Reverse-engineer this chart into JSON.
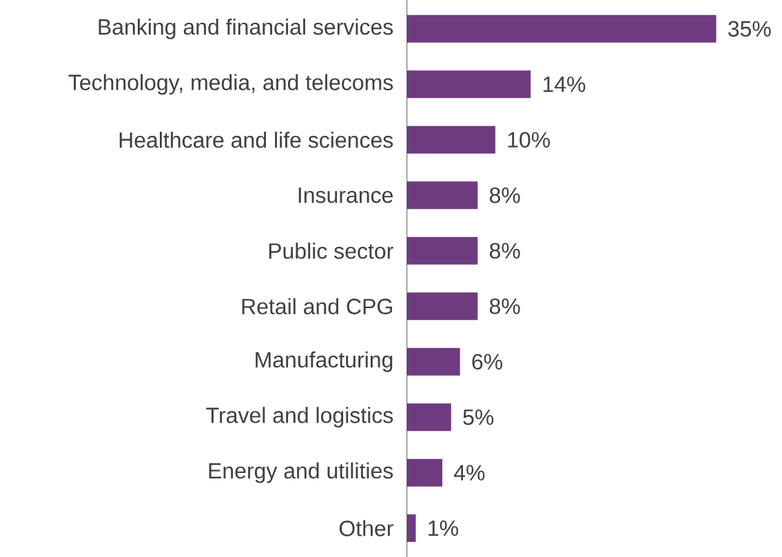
{
  "chart_data": {
    "type": "bar",
    "orientation": "horizontal",
    "categories": [
      "Banking and financial services",
      "Technology, media, and telecoms",
      "Healthcare and life sciences",
      "Insurance",
      "Public sector",
      "Retail and CPG",
      "Manufacturing",
      "Travel and logistics",
      "Energy and utilities",
      "Other"
    ],
    "values": [
      35,
      14,
      10,
      8,
      8,
      8,
      6,
      5,
      4,
      1
    ],
    "value_labels": [
      "35%",
      "14%",
      "10%",
      "8%",
      "8%",
      "8%",
      "6%",
      "5%",
      "4%",
      "1%"
    ],
    "color": "#6f3b80"
  }
}
